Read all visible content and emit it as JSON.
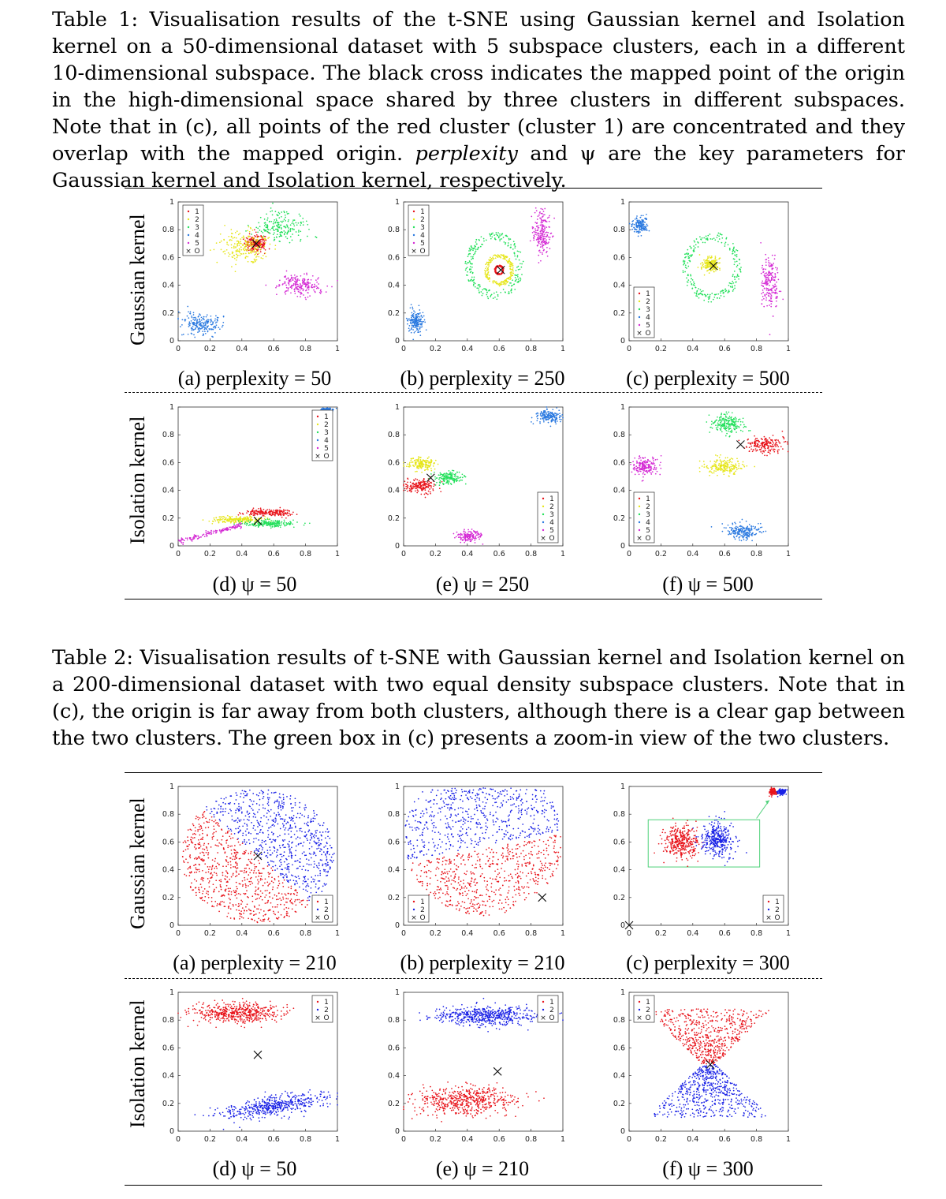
{
  "table1": {
    "caption_prefix": "Table 1:",
    "caption_a": "Visualisation results of the t-SNE using Gaussian kernel and Isolation kernel on a 50-dimensional dataset with 5 subspace clusters, each in a different 10-dimensional subspace. The black cross indicates the mapped point of the origin in the high-dimensional space shared by three clusters in different subspaces. Note that in (c), all points of the red cluster (cluster 1) are concentrated and they overlap with the mapped origin.",
    "caption_em": "perplexity",
    "caption_b": "and ψ are the key parameters for Gaussian kernel and Isolation kernel, respectively.",
    "row_labels": [
      "Gaussian kernel",
      "Isolation kernel"
    ],
    "sub_labels": [
      "(a) perplexity = 50",
      "(b) perplexity = 250",
      "(c) perplexity = 500",
      "(d) ψ = 50",
      "(e) ψ = 250",
      "(f) ψ = 500"
    ]
  },
  "table2": {
    "caption_prefix": "Table 2:",
    "caption": "Visualisation results of t-SNE with Gaussian kernel and Isolation kernel on a 200-dimensional dataset with two equal density subspace clusters. Note that in (c), the origin is far away from both clusters, although there is a clear gap between the two clusters. The green box in (c) presents a zoom-in view of the two clusters.",
    "row_labels": [
      "Gaussian kernel",
      "Isolation kernel"
    ],
    "sub_labels": [
      "(a) perplexity = 210",
      "(b) perplexity = 210",
      "(c) perplexity = 300",
      "(d) ψ = 50",
      "(e) ψ = 210",
      "(f) ψ = 300"
    ]
  },
  "axes": {
    "x_ticks": [
      "0",
      "0.2",
      "0.4",
      "0.6",
      "0.8",
      "1"
    ],
    "y_ticks": [
      "0",
      "0.2",
      "0.4",
      "0.6",
      "0.8",
      "1"
    ]
  },
  "legend5": [
    "1",
    "2",
    "3",
    "4",
    "5",
    "O"
  ],
  "legend2": [
    "1",
    "2",
    "O"
  ],
  "colors": {
    "c1": "#e8141b",
    "c2": "#e6e619",
    "c3": "#22e05a",
    "c4": "#2a79e0",
    "c5": "#d429d4",
    "blue": "#1a22e6",
    "red": "#e8141b",
    "zoom_box": "#4fd17a"
  },
  "chart_data": [
    {
      "id": "t1a",
      "type": "scatter",
      "xlim": [
        0,
        1
      ],
      "ylim": [
        0,
        1
      ],
      "legend": "top-left",
      "clusters": [
        {
          "name": "1",
          "color": "c1",
          "shape": "blob",
          "cx": 0.49,
          "cy": 0.7,
          "rx": 0.07,
          "ry": 0.06,
          "n": 220
        },
        {
          "name": "2",
          "color": "c2",
          "shape": "blob",
          "cx": 0.42,
          "cy": 0.68,
          "rx": 0.15,
          "ry": 0.11,
          "n": 220
        },
        {
          "name": "3",
          "color": "c3",
          "shape": "blob",
          "cx": 0.65,
          "cy": 0.82,
          "rx": 0.17,
          "ry": 0.1,
          "n": 200
        },
        {
          "name": "4",
          "color": "c4",
          "shape": "blob",
          "cx": 0.15,
          "cy": 0.12,
          "rx": 0.12,
          "ry": 0.08,
          "n": 200
        },
        {
          "name": "5",
          "color": "c5",
          "shape": "blob",
          "cx": 0.77,
          "cy": 0.4,
          "rx": 0.14,
          "ry": 0.08,
          "n": 200
        }
      ],
      "origin": [
        0.49,
        0.7
      ]
    },
    {
      "id": "t1b",
      "type": "scatter",
      "xlim": [
        0,
        1
      ],
      "ylim": [
        0,
        1
      ],
      "legend": "top-left",
      "clusters": [
        {
          "name": "1",
          "color": "c1",
          "shape": "ring",
          "cx": 0.6,
          "cy": 0.51,
          "rx": 0.025,
          "ry": 0.03,
          "n": 140
        },
        {
          "name": "2",
          "color": "c2",
          "shape": "ring",
          "cx": 0.6,
          "cy": 0.51,
          "rx": 0.08,
          "ry": 0.1,
          "n": 200
        },
        {
          "name": "3",
          "color": "c3",
          "shape": "ring",
          "cx": 0.57,
          "cy": 0.54,
          "rx": 0.16,
          "ry": 0.21,
          "n": 240
        },
        {
          "name": "4",
          "color": "c4",
          "shape": "blob",
          "cx": 0.08,
          "cy": 0.14,
          "rx": 0.05,
          "ry": 0.08,
          "n": 170
        },
        {
          "name": "5",
          "color": "c5",
          "shape": "blob",
          "cx": 0.87,
          "cy": 0.78,
          "rx": 0.06,
          "ry": 0.16,
          "n": 200
        }
      ],
      "origin": [
        0.61,
        0.51
      ]
    },
    {
      "id": "t1c",
      "type": "scatter",
      "xlim": [
        0,
        1
      ],
      "ylim": [
        0,
        1
      ],
      "legend": "bottom-left",
      "clusters": [
        {
          "name": "1",
          "color": "c1",
          "shape": "blob",
          "cx": 0.53,
          "cy": 0.54,
          "rx": 0.005,
          "ry": 0.005,
          "n": 10
        },
        {
          "name": "2",
          "color": "c2",
          "shape": "blob",
          "cx": 0.51,
          "cy": 0.55,
          "rx": 0.05,
          "ry": 0.06,
          "n": 180
        },
        {
          "name": "3",
          "color": "c3",
          "shape": "ring",
          "cx": 0.52,
          "cy": 0.53,
          "rx": 0.16,
          "ry": 0.22,
          "n": 240
        },
        {
          "name": "4",
          "color": "c4",
          "shape": "blob",
          "cx": 0.07,
          "cy": 0.83,
          "rx": 0.05,
          "ry": 0.06,
          "n": 160
        },
        {
          "name": "5",
          "color": "c5",
          "shape": "blob",
          "cx": 0.88,
          "cy": 0.4,
          "rx": 0.06,
          "ry": 0.2,
          "n": 200
        }
      ],
      "origin": [
        0.53,
        0.54
      ]
    },
    {
      "id": "t1d",
      "type": "scatter",
      "xlim": [
        0,
        1
      ],
      "ylim": [
        0,
        1
      ],
      "legend": "top-right",
      "clusters": [
        {
          "name": "1",
          "color": "c1",
          "shape": "blob",
          "cx": 0.57,
          "cy": 0.24,
          "rx": 0.16,
          "ry": 0.025,
          "n": 200
        },
        {
          "name": "2",
          "color": "c2",
          "shape": "blob",
          "cx": 0.38,
          "cy": 0.19,
          "rx": 0.18,
          "ry": 0.025,
          "n": 200
        },
        {
          "name": "3",
          "color": "c3",
          "shape": "blob",
          "cx": 0.57,
          "cy": 0.16,
          "rx": 0.16,
          "ry": 0.025,
          "n": 200
        },
        {
          "name": "4",
          "color": "c4",
          "shape": "blob",
          "cx": 0.93,
          "cy": 0.98,
          "rx": 0.05,
          "ry": 0.012,
          "n": 120
        },
        {
          "name": "5",
          "color": "c5",
          "shape": "streak",
          "cx": 0.2,
          "cy": 0.09,
          "rx": 0.2,
          "ry": 0.01,
          "n": 140
        }
      ],
      "origin": [
        0.5,
        0.18
      ]
    },
    {
      "id": "t1e",
      "type": "scatter",
      "xlim": [
        0,
        1
      ],
      "ylim": [
        0,
        1
      ],
      "legend": "bottom-right",
      "clusters": [
        {
          "name": "1",
          "color": "c1",
          "shape": "blob",
          "cx": 0.1,
          "cy": 0.43,
          "rx": 0.1,
          "ry": 0.05,
          "n": 180
        },
        {
          "name": "2",
          "color": "c2",
          "shape": "blob",
          "cx": 0.12,
          "cy": 0.59,
          "rx": 0.09,
          "ry": 0.05,
          "n": 170
        },
        {
          "name": "3",
          "color": "c3",
          "shape": "blob",
          "cx": 0.28,
          "cy": 0.49,
          "rx": 0.09,
          "ry": 0.05,
          "n": 170
        },
        {
          "name": "4",
          "color": "c4",
          "shape": "blob",
          "cx": 0.91,
          "cy": 0.93,
          "rx": 0.08,
          "ry": 0.05,
          "n": 170
        },
        {
          "name": "5",
          "color": "c5",
          "shape": "blob",
          "cx": 0.41,
          "cy": 0.07,
          "rx": 0.07,
          "ry": 0.04,
          "n": 150
        }
      ],
      "origin": [
        0.17,
        0.49
      ]
    },
    {
      "id": "t1f",
      "type": "scatter",
      "xlim": [
        0,
        1
      ],
      "ylim": [
        0,
        1
      ],
      "legend": "bottom-left",
      "clusters": [
        {
          "name": "1",
          "color": "c1",
          "shape": "blob",
          "cx": 0.86,
          "cy": 0.73,
          "rx": 0.12,
          "ry": 0.06,
          "n": 200
        },
        {
          "name": "2",
          "color": "c2",
          "shape": "blob",
          "cx": 0.59,
          "cy": 0.57,
          "rx": 0.12,
          "ry": 0.06,
          "n": 200
        },
        {
          "name": "3",
          "color": "c3",
          "shape": "blob",
          "cx": 0.62,
          "cy": 0.88,
          "rx": 0.1,
          "ry": 0.07,
          "n": 200
        },
        {
          "name": "4",
          "color": "c4",
          "shape": "blob",
          "cx": 0.71,
          "cy": 0.1,
          "rx": 0.11,
          "ry": 0.06,
          "n": 200
        },
        {
          "name": "5",
          "color": "c5",
          "shape": "blob",
          "cx": 0.1,
          "cy": 0.57,
          "rx": 0.08,
          "ry": 0.07,
          "n": 180
        }
      ],
      "origin": [
        0.7,
        0.73
      ]
    },
    {
      "id": "t2a",
      "type": "scatter",
      "xlim": [
        0,
        1
      ],
      "ylim": [
        0,
        1
      ],
      "legend": "bottom-right",
      "clusters": [
        {
          "name": "1",
          "color": "red",
          "shape": "spiral-half",
          "cx": 0.5,
          "cy": 0.5,
          "rx": 0.48,
          "ry": 0.48,
          "angle_from": 135,
          "angle_to": 315,
          "n": 700
        },
        {
          "name": "2",
          "color": "blue",
          "shape": "spiral-half",
          "cx": 0.5,
          "cy": 0.5,
          "rx": 0.48,
          "ry": 0.48,
          "angle_from": -45,
          "angle_to": 135,
          "n": 700
        }
      ],
      "origin": [
        0.5,
        0.5
      ]
    },
    {
      "id": "t2b",
      "type": "scatter",
      "xlim": [
        0,
        1
      ],
      "ylim": [
        0,
        1
      ],
      "legend": "bottom-left",
      "clusters": [
        {
          "name": "1",
          "color": "red",
          "shape": "half-disk-low",
          "cx": 0.5,
          "cy": 0.62,
          "rx": 0.5,
          "ry": 0.55,
          "n": 600
        },
        {
          "name": "2",
          "color": "blue",
          "shape": "half-disk-high",
          "cx": 0.5,
          "cy": 0.62,
          "rx": 0.5,
          "ry": 0.55,
          "n": 600
        }
      ],
      "origin": [
        0.87,
        0.2
      ]
    },
    {
      "id": "t2c",
      "type": "scatter",
      "xlim": [
        0,
        1
      ],
      "ylim": [
        0,
        1
      ],
      "legend": "bottom-right",
      "clusters": [
        {
          "name": "1",
          "color": "red",
          "shape": "blob",
          "cx": 0.905,
          "cy": 0.96,
          "rx": 0.025,
          "ry": 0.025,
          "n": 120
        },
        {
          "name": "2",
          "color": "blue",
          "shape": "blob",
          "cx": 0.96,
          "cy": 0.96,
          "rx": 0.025,
          "ry": 0.02,
          "n": 120
        }
      ],
      "origin": [
        0.0,
        0.0
      ],
      "zoom_box": {
        "x0": 0.12,
        "x1": 0.82,
        "y0": 0.42,
        "y1": 0.76
      },
      "zoom_clusters": [
        {
          "name": "1",
          "color": "red",
          "shape": "blob",
          "cx": 0.33,
          "cy": 0.6,
          "rx": 0.1,
          "ry": 0.12,
          "n": 350
        },
        {
          "name": "2",
          "color": "blue",
          "shape": "blob",
          "cx": 0.55,
          "cy": 0.62,
          "rx": 0.1,
          "ry": 0.12,
          "n": 350
        }
      ]
    },
    {
      "id": "t2d",
      "type": "scatter",
      "xlim": [
        0,
        1
      ],
      "ylim": [
        0,
        1
      ],
      "legend": "top-right",
      "clusters": [
        {
          "name": "1",
          "color": "red",
          "shape": "blob",
          "cx": 0.37,
          "cy": 0.85,
          "rx": 0.29,
          "ry": 0.07,
          "n": 500
        },
        {
          "name": "2",
          "color": "blue",
          "shape": "tilted",
          "cx": 0.6,
          "cy": 0.18,
          "rx": 0.32,
          "ry": 0.07,
          "tilt": 0.18,
          "n": 500
        }
      ],
      "origin": [
        0.5,
        0.55
      ]
    },
    {
      "id": "t2e",
      "type": "scatter",
      "xlim": [
        0,
        1
      ],
      "ylim": [
        0,
        1
      ],
      "legend": "top-right",
      "clusters": [
        {
          "name": "1",
          "color": "red",
          "shape": "blob",
          "cx": 0.4,
          "cy": 0.22,
          "rx": 0.3,
          "ry": 0.1,
          "n": 550
        },
        {
          "name": "2",
          "color": "blue",
          "shape": "blob",
          "cx": 0.52,
          "cy": 0.83,
          "rx": 0.32,
          "ry": 0.07,
          "n": 550
        }
      ],
      "origin": [
        0.59,
        0.43
      ]
    },
    {
      "id": "t2f",
      "type": "scatter",
      "xlim": [
        0,
        1
      ],
      "ylim": [
        0,
        1
      ],
      "legend": "top-left",
      "clusters": [
        {
          "name": "1",
          "color": "red",
          "shape": "cone-up",
          "cx": 0.5,
          "cy": 0.48,
          "rx": 0.35,
          "ry": 0.4,
          "n": 600
        },
        {
          "name": "2",
          "color": "blue",
          "shape": "cone-down",
          "cx": 0.5,
          "cy": 0.48,
          "rx": 0.35,
          "ry": 0.38,
          "n": 600
        }
      ],
      "origin": [
        0.51,
        0.48
      ]
    }
  ]
}
